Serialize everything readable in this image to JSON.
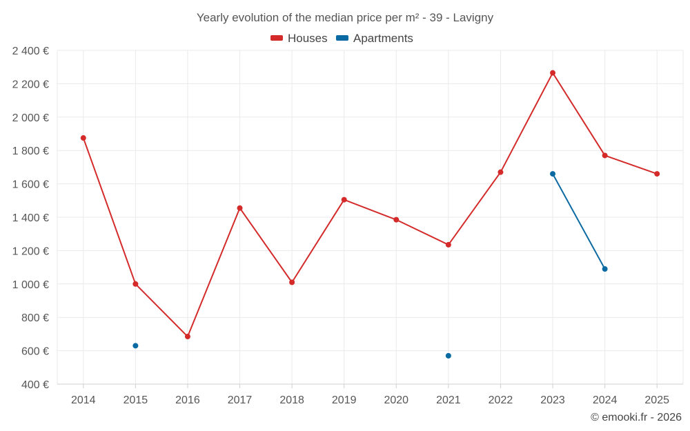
{
  "chart_data": {
    "type": "line",
    "title": "Yearly evolution of the median price per m² - 39 - Lavigny",
    "xlabel": "",
    "ylabel": "",
    "categories": [
      "2014",
      "2015",
      "2016",
      "2017",
      "2018",
      "2019",
      "2020",
      "2021",
      "2022",
      "2023",
      "2024",
      "2025"
    ],
    "ylim": [
      400,
      2400
    ],
    "yticks": [
      400,
      600,
      800,
      1000,
      1200,
      1400,
      1600,
      1800,
      2000,
      2200,
      2400
    ],
    "ytick_labels": [
      "400 €",
      "600 €",
      "800 €",
      "1 000 €",
      "1 200 €",
      "1 400 €",
      "1 600 €",
      "1 800 €",
      "2 000 €",
      "2 200 €",
      "2 400 €"
    ],
    "grid": true,
    "legend_position": "top-center",
    "series": [
      {
        "name": "Houses",
        "color": "#d42a2a",
        "values": [
          1875,
          1000,
          685,
          1455,
          1010,
          1505,
          1385,
          1235,
          1670,
          2265,
          1770,
          1660
        ]
      },
      {
        "name": "Apartments",
        "color": "#0a6aa1",
        "values": [
          null,
          630,
          null,
          null,
          null,
          null,
          null,
          570,
          null,
          1660,
          1090,
          null
        ]
      }
    ],
    "credit": "© emooki.fr - 2026"
  }
}
